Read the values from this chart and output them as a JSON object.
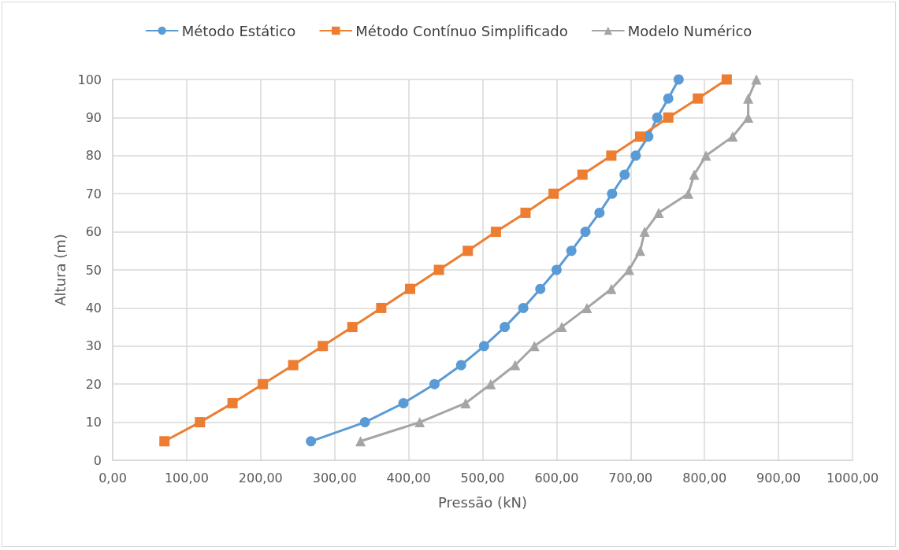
{
  "chart_data": {
    "type": "line",
    "xlabel": "Pressão (kN)",
    "ylabel": "Altura (m)",
    "xlim": [
      0,
      1000
    ],
    "xticks": [
      {
        "value": 0,
        "label": "0,00"
      },
      {
        "value": 100,
        "label": "100,00"
      },
      {
        "value": 200,
        "label": "200,00"
      },
      {
        "value": 300,
        "label": "300,00"
      },
      {
        "value": 400,
        "label": "400,00"
      },
      {
        "value": 500,
        "label": "500,00"
      },
      {
        "value": 600,
        "label": "600,00"
      },
      {
        "value": 700,
        "label": "700,00"
      },
      {
        "value": 800,
        "label": "800,00"
      },
      {
        "value": 900,
        "label": "900,00"
      },
      {
        "value": 1000,
        "label": "1000,00"
      }
    ],
    "ylim": [
      0,
      100
    ],
    "yticks": [
      0,
      10,
      20,
      30,
      40,
      50,
      60,
      70,
      80,
      90,
      100
    ],
    "grid": true,
    "legend": "top",
    "line_style": "solid",
    "series": [
      {
        "name": "Método Estático",
        "color": "#5b9bd5",
        "marker": "circle",
        "x": [
          268,
          341,
          393,
          435,
          471,
          502,
          530,
          555,
          578,
          600,
          620,
          639,
          658,
          675,
          692,
          707,
          724,
          736,
          751,
          765
        ],
        "values": [
          5,
          10,
          15,
          20,
          25,
          30,
          35,
          40,
          45,
          50,
          55,
          60,
          65,
          70,
          75,
          80,
          85,
          90,
          95,
          100
        ]
      },
      {
        "name": "Método Contínuo Simplificado",
        "color": "#ed7d31",
        "marker": "square",
        "x": [
          70,
          118,
          162,
          203,
          244,
          284,
          324,
          363,
          402,
          441,
          480,
          518,
          558,
          596,
          635,
          674,
          713,
          751,
          791,
          830
        ],
        "values": [
          5,
          10,
          15,
          20,
          25,
          30,
          35,
          40,
          45,
          50,
          55,
          60,
          65,
          70,
          75,
          80,
          85,
          90,
          95,
          100
        ]
      },
      {
        "name": "Modelo Numérico",
        "color": "#a5a5a5",
        "marker": "triangle",
        "x": [
          335,
          415,
          477,
          511,
          544,
          570,
          607,
          641,
          674,
          698,
          713,
          719,
          738,
          778,
          786,
          802,
          838,
          859,
          859,
          870
        ],
        "values": [
          5,
          10,
          15,
          20,
          25,
          30,
          35,
          40,
          45,
          50,
          55,
          60,
          65,
          70,
          75,
          80,
          85,
          90,
          95,
          100
        ]
      }
    ]
  }
}
